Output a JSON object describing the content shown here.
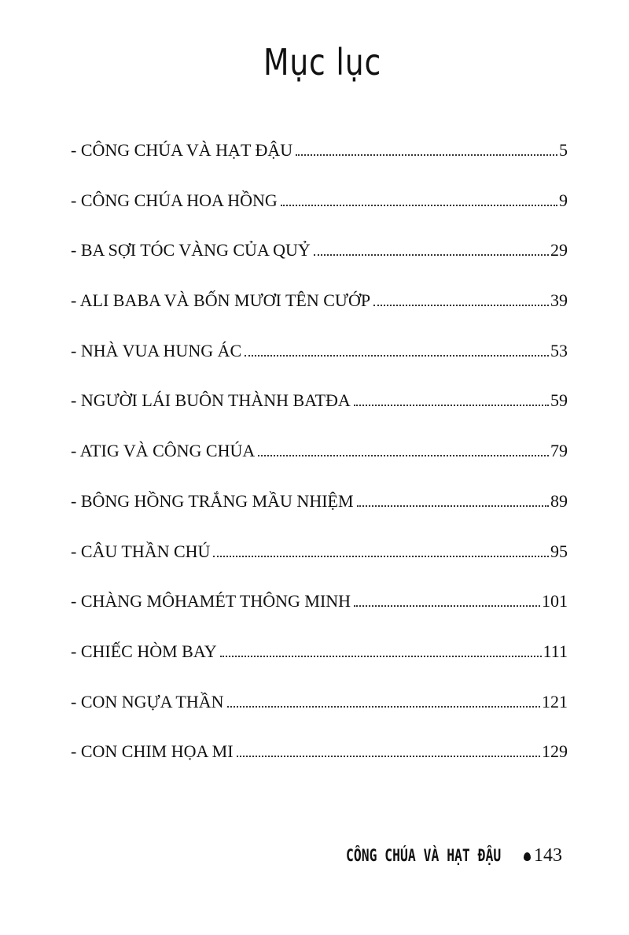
{
  "title": "Mục lục",
  "entries": [
    {
      "label": "- CÔNG CHÚA VÀ HẠT ĐẬU",
      "page": "5"
    },
    {
      "label": "- CÔNG CHÚA HOA HỒNG",
      "page": "9"
    },
    {
      "label": "- BA SỢI TÓC VÀNG CỦA QUỶ",
      "page": "29"
    },
    {
      "label": "- ALI BABA VÀ BỐN MƯƠI TÊN CƯỚP",
      "page": "39"
    },
    {
      "label": "- NHÀ VUA HUNG ÁC",
      "page": "53"
    },
    {
      "label": "- NGƯỜI LÁI BUÔN THÀNH BATĐA",
      "page": "59"
    },
    {
      "label": "- ATIG VÀ CÔNG CHÚA",
      "page": "79"
    },
    {
      "label": "- BÔNG HỒNG TRẮNG MẦU NHIỆM",
      "page": "89"
    },
    {
      "label": "- CÂU THẦN CHÚ",
      "page": "95"
    },
    {
      "label": "- CHÀNG MÔHAMÉT THÔNG MINH",
      "page": "101"
    },
    {
      "label": "- CHIẾC HÒM BAY",
      "page": "111"
    },
    {
      "label": "- CON NGỰA THẦN",
      "page": "121"
    },
    {
      "label": "- CON CHIM HỌA MI",
      "page": "129"
    }
  ],
  "footer": {
    "running_title": "CÔNG CHÚA VÀ HẠT ĐẬU",
    "ornament_icon": "drop-icon",
    "page_number": "143"
  }
}
